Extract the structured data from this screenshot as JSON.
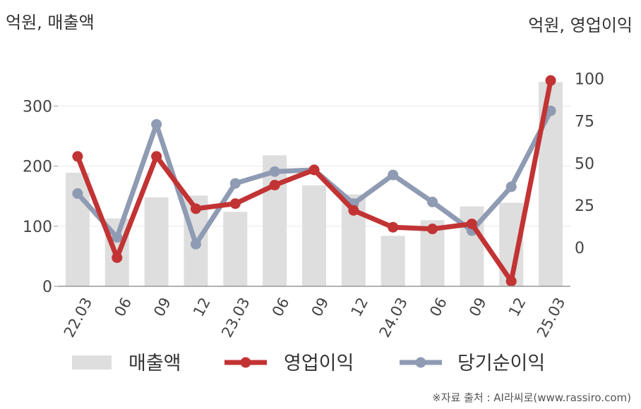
{
  "units": {
    "left": "억원, 매출액",
    "right": "억원, 영업이익"
  },
  "source": "※자료 출처 : AI라씨로(www.rassiro.com)",
  "colors": {
    "bar": "#dedede",
    "operating": "#c23334",
    "net": "#8f9bb3",
    "axis": "#999999",
    "grid": "#e8e8e8"
  },
  "chart_data": {
    "type": "bar",
    "categories": [
      "22.03",
      "06",
      "09",
      "12",
      "23.03",
      "06",
      "09",
      "12",
      "24.03",
      "06",
      "09",
      "12",
      "25.03"
    ],
    "y_left": {
      "ticks": [
        0,
        100,
        200,
        300
      ],
      "lim": [
        0,
        365
      ]
    },
    "y_right": {
      "ticks": [
        0,
        25,
        50,
        75,
        100
      ],
      "lim": [
        -23,
        107
      ]
    },
    "series": [
      {
        "name": "매출액",
        "type": "bar",
        "axis": "left",
        "values": [
          189,
          113,
          148,
          151,
          124,
          218,
          168,
          153,
          84,
          110,
          133,
          139,
          340
        ]
      },
      {
        "name": "영업이익",
        "type": "line",
        "axis": "right",
        "values": [
          54,
          -6,
          54,
          23,
          26,
          37,
          46,
          22,
          12,
          11,
          14,
          -20,
          99
        ]
      },
      {
        "name": "당기순이익",
        "type": "line",
        "axis": "right",
        "values": [
          32,
          6,
          73,
          2,
          38,
          45,
          46,
          26,
          43,
          27,
          10,
          36,
          81
        ]
      }
    ],
    "legend": [
      "매출액",
      "영업이익",
      "당기순이익"
    ],
    "legend_position": "bottom"
  }
}
